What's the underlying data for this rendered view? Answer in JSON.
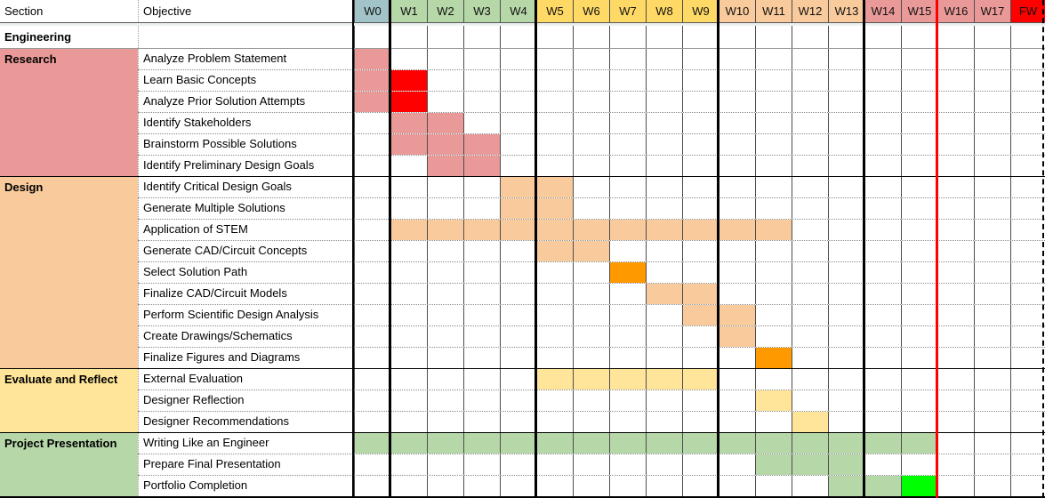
{
  "header": {
    "section_label": "Section",
    "objective_label": "Objective"
  },
  "weeks": [
    {
      "label": "W0",
      "color": "#a2c4c9"
    },
    {
      "label": "W1",
      "color": "#b6d7a8"
    },
    {
      "label": "W2",
      "color": "#b6d7a8"
    },
    {
      "label": "W3",
      "color": "#b6d7a8"
    },
    {
      "label": "W4",
      "color": "#b6d7a8"
    },
    {
      "label": "W5",
      "color": "#ffd966"
    },
    {
      "label": "W6",
      "color": "#ffd966"
    },
    {
      "label": "W7",
      "color": "#ffd966"
    },
    {
      "label": "W8",
      "color": "#ffd966"
    },
    {
      "label": "W9",
      "color": "#ffd966"
    },
    {
      "label": "W10",
      "color": "#f9cb9c"
    },
    {
      "label": "W11",
      "color": "#f9cb9c"
    },
    {
      "label": "W12",
      "color": "#f9cb9c"
    },
    {
      "label": "W13",
      "color": "#f9cb9c"
    },
    {
      "label": "W14",
      "color": "#ea9999"
    },
    {
      "label": "W15",
      "color": "#ea9999"
    },
    {
      "label": "W16",
      "color": "#ea9999"
    },
    {
      "label": "W17",
      "color": "#ea9999"
    },
    {
      "label": "FW",
      "color": "#ff0000"
    }
  ],
  "top_section_row": {
    "label": "Engineering"
  },
  "sections": [
    {
      "name": "Research",
      "color": "#ea9999",
      "tasks": [
        {
          "name": "Analyze Problem Statement",
          "bars": [
            {
              "start": "W0",
              "end": "W0",
              "color": "#ea9999"
            }
          ]
        },
        {
          "name": "Learn Basic Concepts",
          "bars": [
            {
              "start": "W0",
              "end": "W0",
              "color": "#ea9999"
            },
            {
              "start": "W1",
              "end": "W1",
              "color": "#ff0000"
            }
          ]
        },
        {
          "name": "Analyze Prior Solution Attempts",
          "bars": [
            {
              "start": "W0",
              "end": "W0",
              "color": "#ea9999"
            },
            {
              "start": "W1",
              "end": "W1",
              "color": "#ff0000"
            }
          ]
        },
        {
          "name": "Identify Stakeholders",
          "bars": [
            {
              "start": "W1",
              "end": "W2",
              "color": "#ea9999"
            }
          ]
        },
        {
          "name": "Brainstorm Possible Solutions",
          "bars": [
            {
              "start": "W1",
              "end": "W3",
              "color": "#ea9999"
            }
          ]
        },
        {
          "name": "Identify Preliminary Design Goals",
          "bars": [
            {
              "start": "W2",
              "end": "W3",
              "color": "#ea9999"
            }
          ]
        }
      ]
    },
    {
      "name": "Design",
      "color": "#f9cb9c",
      "tasks": [
        {
          "name": "Identify Critical Design Goals",
          "bars": [
            {
              "start": "W4",
              "end": "W5",
              "color": "#f9cb9c"
            }
          ]
        },
        {
          "name": "Generate Multiple Solutions",
          "bars": [
            {
              "start": "W4",
              "end": "W5",
              "color": "#f9cb9c"
            }
          ]
        },
        {
          "name": "Application of STEM",
          "bars": [
            {
              "start": "W1",
              "end": "W11",
              "color": "#f9cb9c"
            }
          ]
        },
        {
          "name": "Generate CAD/Circuit Concepts",
          "bars": [
            {
              "start": "W5",
              "end": "W6",
              "color": "#f9cb9c"
            }
          ]
        },
        {
          "name": "Select Solution Path",
          "bars": [
            {
              "start": "W7",
              "end": "W7",
              "color": "#ff9900"
            }
          ]
        },
        {
          "name": "Finalize CAD/Circuit Models",
          "bars": [
            {
              "start": "W8",
              "end": "W9",
              "color": "#f9cb9c"
            }
          ]
        },
        {
          "name": "Perform Scientific Design Analysis",
          "bars": [
            {
              "start": "W9",
              "end": "W10",
              "color": "#f9cb9c"
            }
          ]
        },
        {
          "name": "Create Drawings/Schematics",
          "bars": [
            {
              "start": "W10",
              "end": "W10",
              "color": "#f9cb9c"
            }
          ]
        },
        {
          "name": "Finalize Figures and Diagrams",
          "bars": [
            {
              "start": "W11",
              "end": "W11",
              "color": "#ff9900"
            }
          ]
        }
      ]
    },
    {
      "name": "Evaluate and Reflect",
      "color": "#ffe599",
      "tasks": [
        {
          "name": "External Evaluation",
          "bars": [
            {
              "start": "W5",
              "end": "W9",
              "color": "#ffe599"
            }
          ]
        },
        {
          "name": "Designer Reflection",
          "bars": [
            {
              "start": "W11",
              "end": "W11",
              "color": "#ffe599"
            }
          ]
        },
        {
          "name": "Designer Recommendations",
          "bars": [
            {
              "start": "W12",
              "end": "W12",
              "color": "#ffe599"
            }
          ]
        }
      ]
    },
    {
      "name": "Project Presentation",
      "color": "#b6d7a8",
      "tasks": [
        {
          "name": "Writing Like an Engineer",
          "bars": [
            {
              "start": "W0",
              "end": "W15",
              "color": "#b6d7a8"
            }
          ]
        },
        {
          "name": "Prepare Final Presentation",
          "bars": [
            {
              "start": "W11",
              "end": "W13",
              "color": "#b6d7a8"
            }
          ]
        },
        {
          "name": "Portfolio Completion",
          "bars": [
            {
              "start": "W13",
              "end": "W14",
              "color": "#b6d7a8"
            },
            {
              "start": "W15",
              "end": "W15",
              "color": "#00ff00"
            }
          ]
        }
      ]
    }
  ],
  "gridlines": {
    "phase_boundaries_after_week": [
      "W0",
      "W4",
      "W9",
      "W13"
    ],
    "red_line_after_week": "W15",
    "right_edge_style": "dashed"
  },
  "palette": {
    "week0_header": "#a2c4c9",
    "green": "#b6d7a8",
    "yellow_header": "#ffd966",
    "light_yellow": "#ffe599",
    "light_orange": "#f9cb9c",
    "bright_orange": "#ff9900",
    "pink": "#ea9999",
    "bright_red": "#ff0000",
    "bright_green": "#00ff00"
  },
  "chart_data": {
    "type": "table",
    "subtype": "gantt",
    "x_categories": [
      "W0",
      "W1",
      "W2",
      "W3",
      "W4",
      "W5",
      "W6",
      "W7",
      "W8",
      "W9",
      "W10",
      "W11",
      "W12",
      "W13",
      "W14",
      "W15",
      "W16",
      "W17",
      "FW"
    ],
    "column_headers": [
      "Section",
      "Objective"
    ],
    "top_group_label": "Engineering",
    "red_marker_line_after": "W15",
    "rows": [
      {
        "section": "Research",
        "task": "Analyze Problem Statement",
        "spans": [
          {
            "from": "W0",
            "to": "W0",
            "color": "#ea9999"
          }
        ]
      },
      {
        "section": "Research",
        "task": "Learn Basic Concepts",
        "spans": [
          {
            "from": "W0",
            "to": "W0",
            "color": "#ea9999"
          },
          {
            "from": "W1",
            "to": "W1",
            "color": "#ff0000"
          }
        ]
      },
      {
        "section": "Research",
        "task": "Analyze Prior Solution Attempts",
        "spans": [
          {
            "from": "W0",
            "to": "W0",
            "color": "#ea9999"
          },
          {
            "from": "W1",
            "to": "W1",
            "color": "#ff0000"
          }
        ]
      },
      {
        "section": "Research",
        "task": "Identify Stakeholders",
        "spans": [
          {
            "from": "W1",
            "to": "W2",
            "color": "#ea9999"
          }
        ]
      },
      {
        "section": "Research",
        "task": "Brainstorm Possible Solutions",
        "spans": [
          {
            "from": "W1",
            "to": "W3",
            "color": "#ea9999"
          }
        ]
      },
      {
        "section": "Research",
        "task": "Identify Preliminary Design Goals",
        "spans": [
          {
            "from": "W2",
            "to": "W3",
            "color": "#ea9999"
          }
        ]
      },
      {
        "section": "Design",
        "task": "Identify Critical Design Goals",
        "spans": [
          {
            "from": "W4",
            "to": "W5",
            "color": "#f9cb9c"
          }
        ]
      },
      {
        "section": "Design",
        "task": "Generate Multiple Solutions",
        "spans": [
          {
            "from": "W4",
            "to": "W5",
            "color": "#f9cb9c"
          }
        ]
      },
      {
        "section": "Design",
        "task": "Application of STEM",
        "spans": [
          {
            "from": "W1",
            "to": "W11",
            "color": "#f9cb9c"
          }
        ]
      },
      {
        "section": "Design",
        "task": "Generate CAD/Circuit Concepts",
        "spans": [
          {
            "from": "W5",
            "to": "W6",
            "color": "#f9cb9c"
          }
        ]
      },
      {
        "section": "Design",
        "task": "Select Solution Path",
        "spans": [
          {
            "from": "W7",
            "to": "W7",
            "color": "#ff9900"
          }
        ]
      },
      {
        "section": "Design",
        "task": "Finalize CAD/Circuit Models",
        "spans": [
          {
            "from": "W8",
            "to": "W9",
            "color": "#f9cb9c"
          }
        ]
      },
      {
        "section": "Design",
        "task": "Perform Scientific Design Analysis",
        "spans": [
          {
            "from": "W9",
            "to": "W10",
            "color": "#f9cb9c"
          }
        ]
      },
      {
        "section": "Design",
        "task": "Create Drawings/Schematics",
        "spans": [
          {
            "from": "W10",
            "to": "W10",
            "color": "#f9cb9c"
          }
        ]
      },
      {
        "section": "Design",
        "task": "Finalize Figures and Diagrams",
        "spans": [
          {
            "from": "W11",
            "to": "W11",
            "color": "#ff9900"
          }
        ]
      },
      {
        "section": "Evaluate and Reflect",
        "task": "External Evaluation",
        "spans": [
          {
            "from": "W5",
            "to": "W9",
            "color": "#ffe599"
          }
        ]
      },
      {
        "section": "Evaluate and Reflect",
        "task": "Designer Reflection",
        "spans": [
          {
            "from": "W11",
            "to": "W11",
            "color": "#ffe599"
          }
        ]
      },
      {
        "section": "Evaluate and Reflect",
        "task": "Designer Recommendations",
        "spans": [
          {
            "from": "W12",
            "to": "W12",
            "color": "#ffe599"
          }
        ]
      },
      {
        "section": "Project Presentation",
        "task": "Writing Like an Engineer",
        "spans": [
          {
            "from": "W0",
            "to": "W15",
            "color": "#b6d7a8"
          }
        ]
      },
      {
        "section": "Project Presentation",
        "task": "Prepare Final Presentation",
        "spans": [
          {
            "from": "W11",
            "to": "W13",
            "color": "#b6d7a8"
          }
        ]
      },
      {
        "section": "Project Presentation",
        "task": "Portfolio Completion",
        "spans": [
          {
            "from": "W13",
            "to": "W14",
            "color": "#b6d7a8"
          },
          {
            "from": "W15",
            "to": "W15",
            "color": "#00ff00"
          }
        ]
      }
    ]
  }
}
